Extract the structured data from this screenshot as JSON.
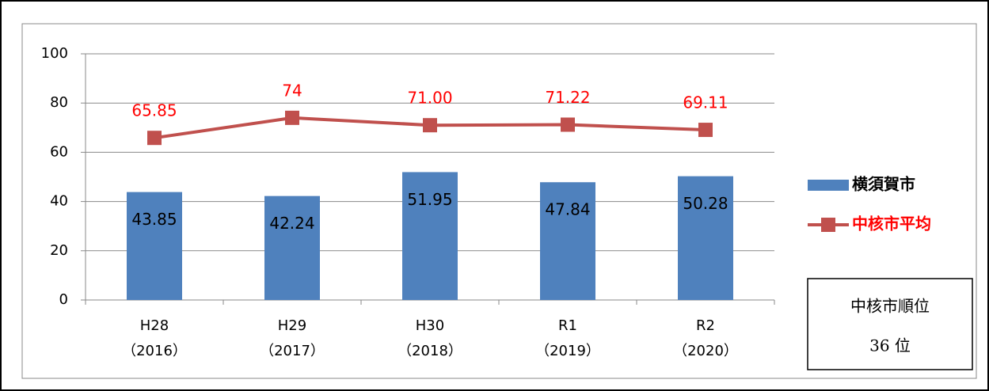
{
  "chart_data": {
    "type": "bar",
    "categories": [
      [
        "H28",
        "（2016）"
      ],
      [
        "H29",
        "（2017）"
      ],
      [
        "H30",
        "（2018）"
      ],
      [
        "R1",
        "（2019）"
      ],
      [
        "R2",
        "（2020）"
      ]
    ],
    "series": [
      {
        "name": "横須賀市",
        "type": "bar",
        "color": "#4f81bd",
        "values": [
          43.85,
          42.24,
          51.95,
          47.84,
          50.28
        ]
      },
      {
        "name": "中核市平均",
        "type": "line",
        "color": "#c0504d",
        "label_color": "#ff0000",
        "values": [
          65.85,
          74,
          71.0,
          71.22,
          69.11
        ],
        "value_labels": [
          "65.85",
          "74",
          "71.00",
          "71.22",
          "69.11"
        ]
      }
    ],
    "ylim": [
      0,
      100
    ],
    "yticks": [
      0,
      20,
      40,
      60,
      80,
      100
    ],
    "grid": true,
    "legend": "right",
    "annotation": [
      "中核市順位",
      "36 位"
    ]
  }
}
